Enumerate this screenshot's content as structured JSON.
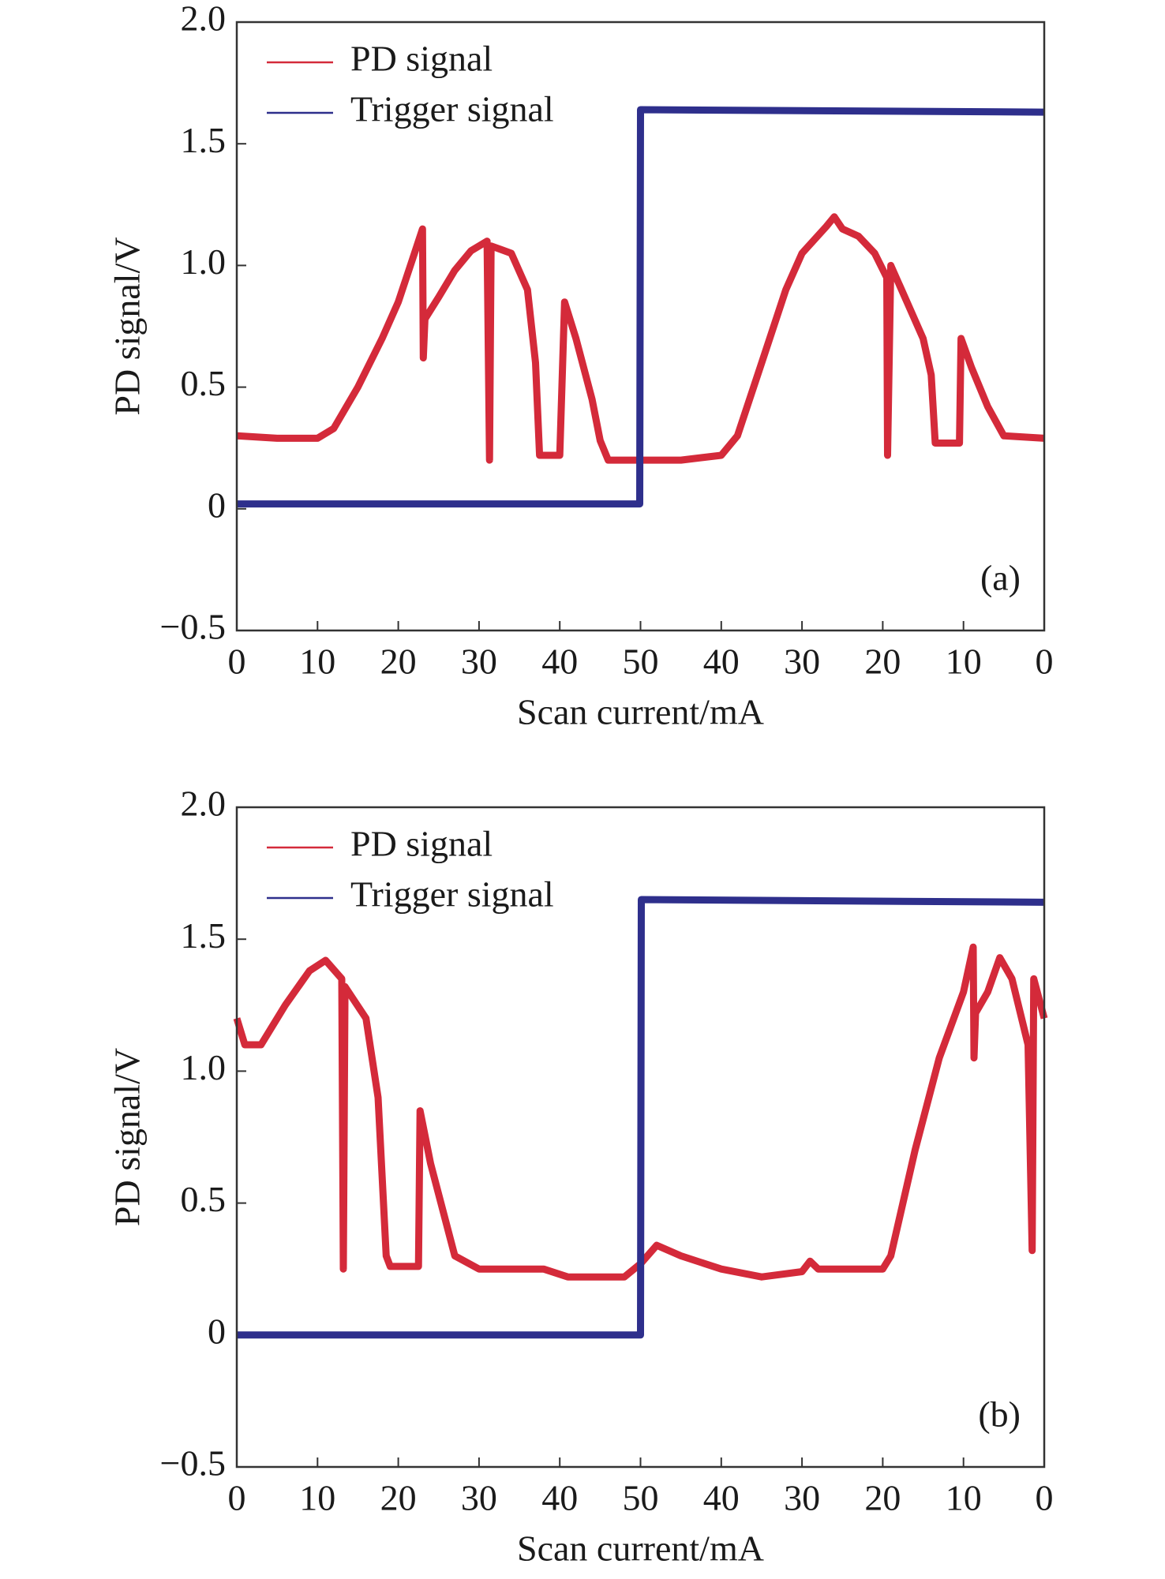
{
  "chart_data": [
    {
      "type": "line",
      "xlabel": "Scan current/mA",
      "ylabel": "PD signal/V",
      "annotation": "(a)",
      "legend": "upper left",
      "xlim": [
        0,
        100
      ],
      "ylim": [
        -0.5,
        2.0
      ],
      "xticks": [
        0,
        10,
        20,
        30,
        40,
        50,
        {
          "value": 60,
          "label": "40"
        },
        {
          "value": 70,
          "label": "30"
        },
        {
          "value": 80,
          "label": "20"
        },
        {
          "value": 90,
          "label": "10"
        },
        {
          "value": 100,
          "label": "0"
        }
      ],
      "yticks": [
        {
          "value": -0.5,
          "label": "−0.5"
        },
        0,
        0.5,
        {
          "value": 1,
          "label": "1.0"
        },
        1.5,
        {
          "value": 2,
          "label": "2.0"
        }
      ],
      "series": [
        {
          "name": "PD signal",
          "color": "#d42a3a",
          "x": [
            0,
            5,
            10,
            12,
            15,
            18,
            20,
            22,
            23,
            23.1,
            23.3,
            25,
            27,
            29,
            31,
            31.3,
            31.5,
            34,
            36,
            37,
            37.5,
            40,
            40.6,
            42,
            44,
            45,
            46,
            50,
            55,
            60,
            62,
            65,
            68,
            70,
            73,
            74,
            75,
            77,
            79,
            80.5,
            80.6,
            81,
            83,
            85,
            86,
            86.5,
            89.5,
            89.7,
            91,
            93,
            95,
            100
          ],
          "values": [
            0.3,
            0.29,
            0.29,
            0.33,
            0.5,
            0.7,
            0.85,
            1.05,
            1.15,
            0.62,
            0.78,
            0.87,
            0.98,
            1.06,
            1.1,
            0.2,
            1.08,
            1.05,
            0.9,
            0.6,
            0.22,
            0.22,
            0.85,
            0.7,
            0.45,
            0.28,
            0.2,
            0.2,
            0.2,
            0.22,
            0.3,
            0.6,
            0.9,
            1.05,
            1.16,
            1.2,
            1.15,
            1.12,
            1.05,
            0.95,
            0.22,
            1.0,
            0.85,
            0.7,
            0.55,
            0.27,
            0.27,
            0.7,
            0.58,
            0.42,
            0.3,
            0.29
          ]
        },
        {
          "name": "Trigger signal",
          "color": "#2e2f8c",
          "x": [
            0,
            49.9,
            50,
            100
          ],
          "values": [
            0.02,
            0.02,
            1.64,
            1.63
          ]
        }
      ]
    },
    {
      "type": "line",
      "xlabel": "Scan current/mA",
      "ylabel": "PD signal/V",
      "annotation": "(b)",
      "legend": "upper left",
      "xlim": [
        0,
        100
      ],
      "ylim": [
        -0.5,
        2.0
      ],
      "xticks": [
        0,
        10,
        20,
        30,
        40,
        50,
        {
          "value": 60,
          "label": "40"
        },
        {
          "value": 70,
          "label": "30"
        },
        {
          "value": 80,
          "label": "20"
        },
        {
          "value": 90,
          "label": "10"
        },
        {
          "value": 100,
          "label": "0"
        }
      ],
      "yticks": [
        {
          "value": -0.5,
          "label": "−0.5"
        },
        0,
        0.5,
        {
          "value": 1,
          "label": "1.0"
        },
        1.5,
        {
          "value": 2,
          "label": "2.0"
        }
      ],
      "series": [
        {
          "name": "PD signal",
          "color": "#d42a3a",
          "x": [
            0,
            1,
            3,
            6,
            9,
            11,
            13,
            13.2,
            13.4,
            16,
            17.5,
            18.5,
            19,
            22.5,
            22.7,
            24,
            27,
            30,
            38,
            41,
            48,
            50,
            52,
            55,
            60,
            65,
            70,
            71,
            72,
            80,
            81,
            84,
            87,
            90,
            91.2,
            91.3,
            91.5,
            93,
            94.5,
            96,
            98,
            98.5,
            98.7,
            100
          ],
          "values": [
            1.2,
            1.1,
            1.1,
            1.25,
            1.38,
            1.42,
            1.35,
            0.25,
            1.32,
            1.2,
            0.9,
            0.3,
            0.26,
            0.26,
            0.85,
            0.65,
            0.3,
            0.25,
            0.25,
            0.22,
            0.22,
            0.27,
            0.34,
            0.3,
            0.25,
            0.22,
            0.24,
            0.28,
            0.25,
            0.25,
            0.3,
            0.7,
            1.05,
            1.3,
            1.47,
            1.05,
            1.22,
            1.3,
            1.43,
            1.35,
            1.1,
            0.32,
            1.35,
            1.2
          ]
        },
        {
          "name": "Trigger signal",
          "color": "#2e2f8c",
          "x": [
            0,
            50,
            50.1,
            100
          ],
          "values": [
            0.0,
            0.0,
            1.65,
            1.64
          ]
        }
      ]
    }
  ]
}
